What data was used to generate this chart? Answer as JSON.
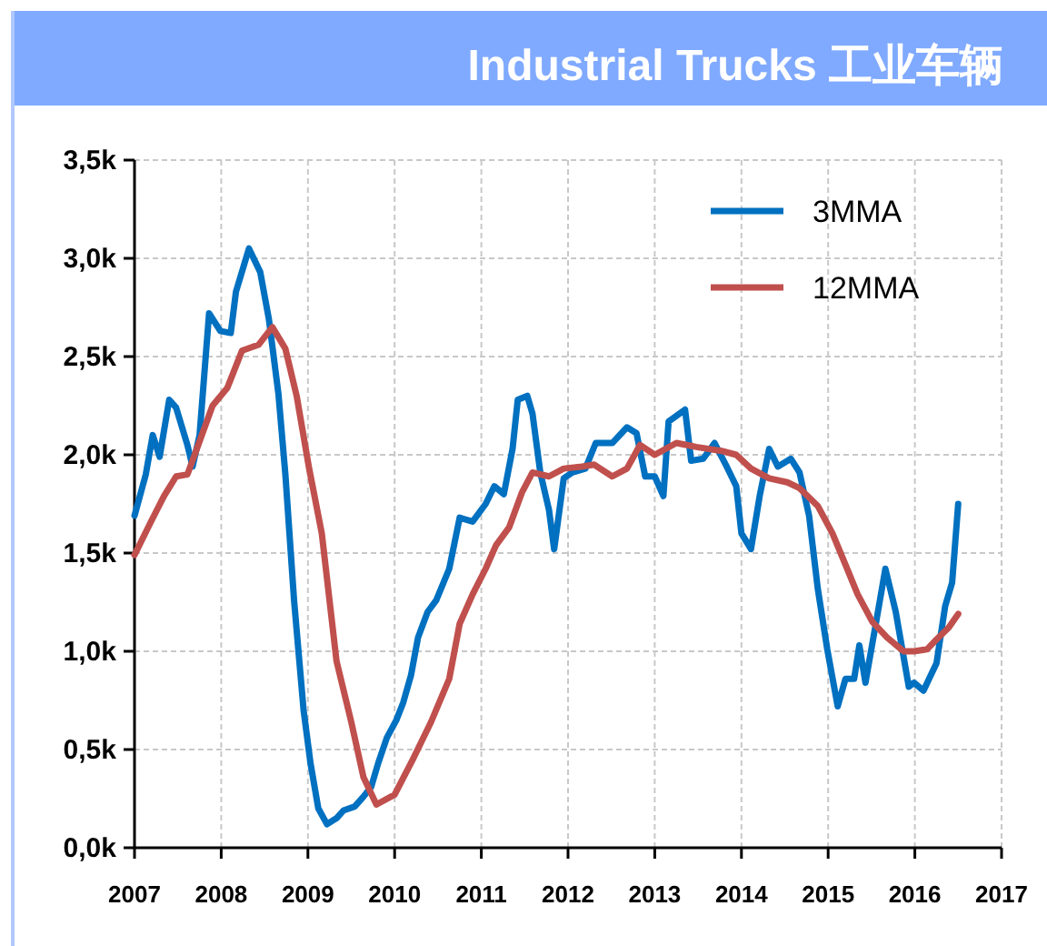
{
  "chart_data": {
    "type": "line",
    "title": "Industrial Trucks 工业车辆",
    "xlim": [
      2007,
      2017
    ],
    "xticks": [
      2007,
      2008,
      2009,
      2010,
      2011,
      2012,
      2013,
      2014,
      2015,
      2016,
      2017
    ],
    "ylim": [
      0,
      3.5
    ],
    "yticks": [
      {
        "value": 0,
        "label": "0,0k"
      },
      {
        "value": 0.5,
        "label": "0,5k"
      },
      {
        "value": 1,
        "label": "1,0k"
      },
      {
        "value": 1.5,
        "label": "1,5k"
      },
      {
        "value": 2,
        "label": "2,0k"
      },
      {
        "value": 2.5,
        "label": "2,5k"
      },
      {
        "value": 3,
        "label": "3,0k"
      },
      {
        "value": 3.5,
        "label": "3,5k"
      }
    ],
    "grid": true,
    "legend": "top right",
    "series": [
      {
        "name": "3MMA",
        "color": "#0070c0",
        "x": [
          2007.0,
          2007.13,
          2007.21,
          2007.29,
          2007.4,
          2007.48,
          2007.61,
          2007.67,
          2007.75,
          2007.86,
          2007.99,
          2008.11,
          2008.17,
          2008.32,
          2008.45,
          2008.55,
          2008.66,
          2008.74,
          2008.84,
          2008.95,
          2009.03,
          2009.12,
          2009.22,
          2009.33,
          2009.41,
          2009.54,
          2009.64,
          2009.73,
          2009.81,
          2009.91,
          2010.02,
          2010.1,
          2010.19,
          2010.27,
          2010.38,
          2010.48,
          2010.63,
          2010.75,
          2010.9,
          2011.05,
          2011.15,
          2011.26,
          2011.36,
          2011.42,
          2011.53,
          2011.59,
          2011.68,
          2011.78,
          2011.84,
          2011.95,
          2012.05,
          2012.2,
          2012.32,
          2012.51,
          2012.68,
          2012.79,
          2012.89,
          2013.0,
          2013.1,
          2013.16,
          2013.35,
          2013.42,
          2013.56,
          2013.69,
          2013.83,
          2013.94,
          2014.0,
          2014.11,
          2014.21,
          2014.32,
          2014.42,
          2014.57,
          2014.67,
          2014.78,
          2014.88,
          2014.99,
          2015.11,
          2015.2,
          2015.3,
          2015.36,
          2015.43,
          2015.55,
          2015.66,
          2015.78,
          2015.93,
          2015.99,
          2016.1,
          2016.25,
          2016.35,
          2016.43,
          2016.5
        ],
        "values": [
          1.69,
          1.9,
          2.1,
          1.99,
          2.28,
          2.24,
          2.05,
          1.94,
          2.1,
          2.72,
          2.63,
          2.62,
          2.83,
          3.05,
          2.93,
          2.69,
          2.31,
          1.9,
          1.26,
          0.7,
          0.43,
          0.2,
          0.12,
          0.15,
          0.19,
          0.21,
          0.26,
          0.31,
          0.43,
          0.56,
          0.65,
          0.74,
          0.88,
          1.07,
          1.2,
          1.26,
          1.42,
          1.68,
          1.66,
          1.75,
          1.84,
          1.8,
          2.03,
          2.28,
          2.3,
          2.21,
          1.91,
          1.72,
          1.52,
          1.88,
          1.91,
          1.93,
          2.06,
          2.06,
          2.14,
          2.11,
          1.89,
          1.89,
          1.79,
          2.17,
          2.23,
          1.97,
          1.98,
          2.06,
          1.94,
          1.84,
          1.6,
          1.52,
          1.79,
          2.03,
          1.94,
          1.98,
          1.91,
          1.69,
          1.32,
          1.01,
          0.72,
          0.86,
          0.86,
          1.03,
          0.84,
          1.14,
          1.42,
          1.2,
          0.82,
          0.84,
          0.8,
          0.94,
          1.23,
          1.35,
          1.75
        ]
      },
      {
        "name": "12MMA",
        "color": "#c0504d",
        "x": [
          2007.0,
          2007.19,
          2007.34,
          2007.48,
          2007.61,
          2007.71,
          2007.9,
          2008.07,
          2008.24,
          2008.43,
          2008.59,
          2008.74,
          2008.87,
          2009.01,
          2009.16,
          2009.33,
          2009.5,
          2009.64,
          2009.79,
          2010.0,
          2010.21,
          2010.42,
          2010.63,
          2010.75,
          2010.9,
          2011.05,
          2011.17,
          2011.32,
          2011.47,
          2011.59,
          2011.78,
          2011.95,
          2012.16,
          2012.3,
          2012.51,
          2012.68,
          2012.83,
          2013.0,
          2013.25,
          2013.48,
          2013.77,
          2013.94,
          2014.11,
          2014.32,
          2014.53,
          2014.67,
          2014.88,
          2015.05,
          2015.2,
          2015.34,
          2015.51,
          2015.68,
          2015.87,
          2015.99,
          2016.14,
          2016.25,
          2016.39,
          2016.5
        ],
        "values": [
          1.49,
          1.66,
          1.79,
          1.89,
          1.9,
          2.02,
          2.25,
          2.34,
          2.53,
          2.56,
          2.65,
          2.54,
          2.3,
          1.94,
          1.6,
          0.95,
          0.64,
          0.36,
          0.22,
          0.27,
          0.45,
          0.64,
          0.86,
          1.14,
          1.29,
          1.42,
          1.54,
          1.63,
          1.81,
          1.91,
          1.89,
          1.93,
          1.94,
          1.95,
          1.89,
          1.93,
          2.05,
          2.0,
          2.06,
          2.04,
          2.02,
          2.0,
          1.93,
          1.88,
          1.86,
          1.83,
          1.74,
          1.6,
          1.44,
          1.29,
          1.15,
          1.07,
          1.0,
          1.0,
          1.01,
          1.06,
          1.12,
          1.19
        ]
      }
    ]
  }
}
